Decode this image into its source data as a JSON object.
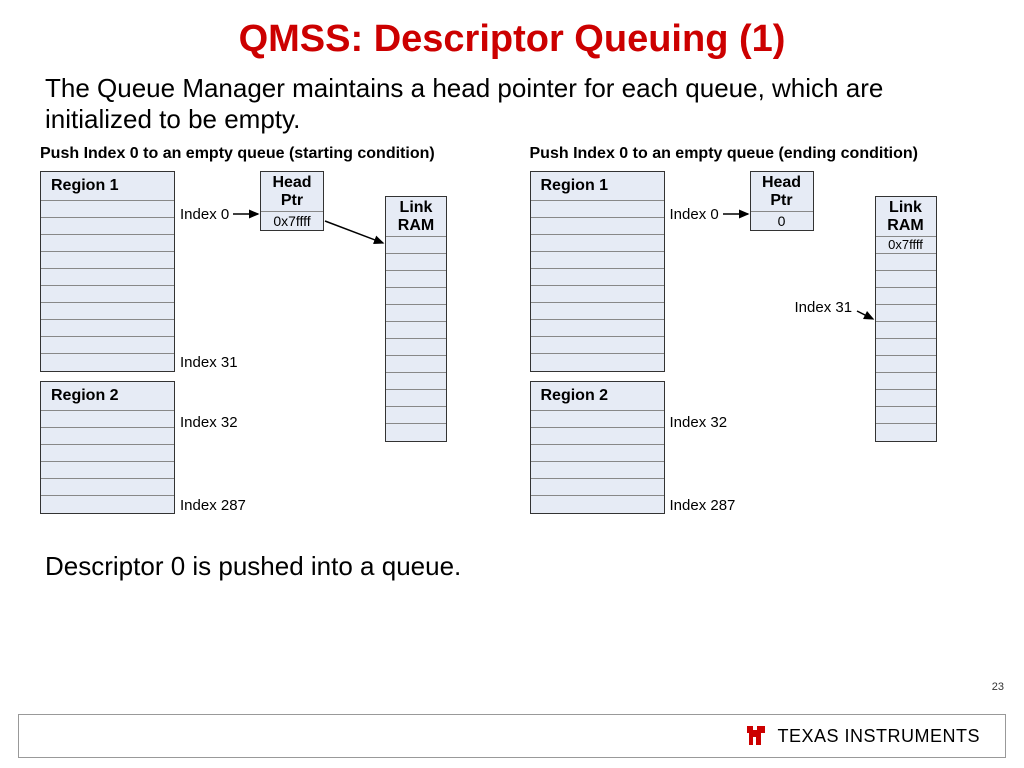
{
  "title": {
    "text": "QMSS: Descriptor Queuing (1)",
    "color": "#cc0000",
    "fontsize": 38
  },
  "description": {
    "text": "The Queue Manager maintains a head pointer for each queue, which are initialized to be empty.",
    "fontsize": 26
  },
  "footer_text": {
    "text": "Descriptor 0 is pushed into a queue.",
    "fontsize": 26
  },
  "page_number": "23",
  "colors": {
    "box_fill": "#e6ebf5",
    "box_border": "#333333",
    "row_border": "#888888",
    "arrow": "#000000"
  },
  "panels": [
    {
      "title": "Push Index 0 to an empty queue (starting condition)",
      "region1": {
        "label": "Region 1",
        "rows": 10
      },
      "region2": {
        "label": "Region 2",
        "rows": 6
      },
      "head_ptr": {
        "title_l1": "Head",
        "title_l2": "Ptr",
        "value": "0x7ffff"
      },
      "link_ram": {
        "title_l1": "Link",
        "title_l2": "RAM",
        "rows": 12,
        "value_row": -1,
        "value": ""
      },
      "labels": {
        "index0": "Index 0",
        "index31": "Index 31",
        "index32": "Index 32",
        "index287": "Index 287"
      },
      "arrows": [
        "index0_to_headptr",
        "headptr_to_linkram"
      ]
    },
    {
      "title": "Push Index 0 to an empty queue (ending condition)",
      "region1": {
        "label": "Region 1",
        "rows": 10
      },
      "region2": {
        "label": "Region 2",
        "rows": 6
      },
      "head_ptr": {
        "title_l1": "Head",
        "title_l2": "Ptr",
        "value": "0"
      },
      "link_ram": {
        "title_l1": "Link",
        "title_l2": "RAM",
        "rows": 12,
        "value_row": 0,
        "value": "0x7ffff"
      },
      "labels": {
        "index0": "Index 0",
        "index31": "Index 31",
        "index32": "Index 32",
        "index287": "Index 287"
      },
      "arrows": [
        "index0_to_headptr",
        "index31_to_linkram"
      ]
    }
  ],
  "brand": {
    "name": "TEXAS INSTRUMENTS",
    "logo_color": "#cc0000",
    "font_variant": "small-caps"
  }
}
